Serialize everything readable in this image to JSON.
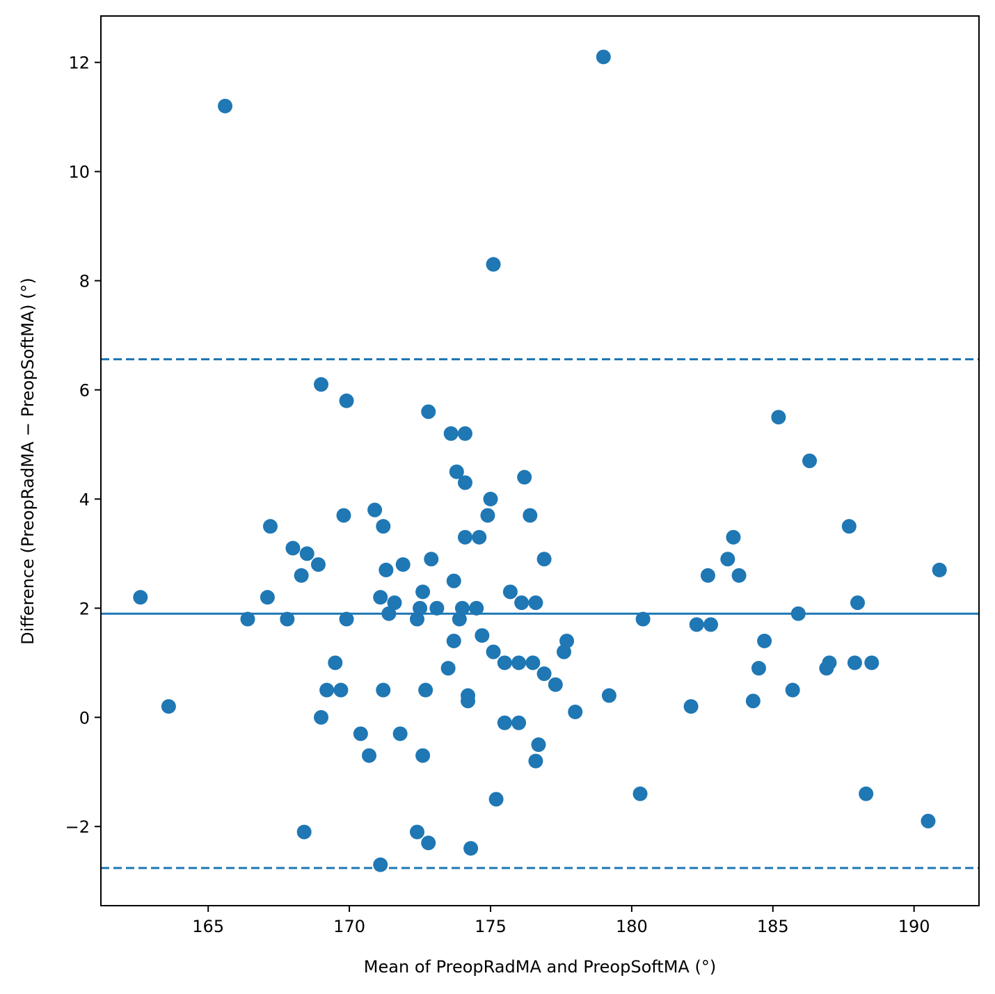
{
  "chart_data": {
    "type": "scatter",
    "xlabel": "Mean of PreopRadMA and PreopSoftMA (°)",
    "ylabel": "Difference (PreopRadMA − PreopSoftMA) (°)",
    "xlim": [
      161.2,
      192.3
    ],
    "ylim": [
      -3.45,
      12.85
    ],
    "x_ticks": [
      165,
      170,
      175,
      180,
      185,
      190
    ],
    "x_tick_labels": [
      "165",
      "170",
      "175",
      "180",
      "185",
      "190"
    ],
    "y_ticks": [
      -2,
      0,
      2,
      4,
      6,
      8,
      10,
      12
    ],
    "y_tick_labels": [
      "−2",
      "0",
      "2",
      "4",
      "6",
      "8",
      "10",
      "12"
    ],
    "grid": false,
    "point_color": "#1f77b4",
    "reference_lines": [
      {
        "kind": "mean",
        "y": 1.9,
        "style": "solid"
      },
      {
        "kind": "upper_limit",
        "y": 6.56,
        "style": "dashed"
      },
      {
        "kind": "lower_limit",
        "y": -2.76,
        "style": "dashed"
      }
    ],
    "points": [
      {
        "x": 162.6,
        "y": 2.2
      },
      {
        "x": 163.6,
        "y": 0.2
      },
      {
        "x": 165.6,
        "y": 11.2
      },
      {
        "x": 166.4,
        "y": 1.8
      },
      {
        "x": 167.1,
        "y": 2.2
      },
      {
        "x": 167.2,
        "y": 3.5
      },
      {
        "x": 167.8,
        "y": 1.8
      },
      {
        "x": 168.0,
        "y": 3.1
      },
      {
        "x": 168.3,
        "y": 2.6
      },
      {
        "x": 168.4,
        "y": -2.1
      },
      {
        "x": 168.5,
        "y": 3.0
      },
      {
        "x": 168.9,
        "y": 2.8
      },
      {
        "x": 169.0,
        "y": 0.0
      },
      {
        "x": 169.0,
        "y": 6.1
      },
      {
        "x": 169.2,
        "y": 0.5
      },
      {
        "x": 169.5,
        "y": 1.0
      },
      {
        "x": 169.7,
        "y": 0.5
      },
      {
        "x": 169.8,
        "y": 3.7
      },
      {
        "x": 169.9,
        "y": 5.8
      },
      {
        "x": 169.9,
        "y": 1.8
      },
      {
        "x": 170.4,
        "y": -0.3
      },
      {
        "x": 170.7,
        "y": -0.7
      },
      {
        "x": 170.9,
        "y": 3.8
      },
      {
        "x": 171.1,
        "y": 2.2
      },
      {
        "x": 171.1,
        "y": -2.7
      },
      {
        "x": 171.2,
        "y": 0.5
      },
      {
        "x": 171.2,
        "y": 3.5
      },
      {
        "x": 171.3,
        "y": 2.7
      },
      {
        "x": 171.4,
        "y": 1.9
      },
      {
        "x": 171.6,
        "y": 2.1
      },
      {
        "x": 171.8,
        "y": -0.3
      },
      {
        "x": 171.9,
        "y": 2.8
      },
      {
        "x": 172.4,
        "y": 1.8
      },
      {
        "x": 172.4,
        "y": -2.1
      },
      {
        "x": 172.5,
        "y": 2.0
      },
      {
        "x": 172.6,
        "y": 2.3
      },
      {
        "x": 172.6,
        "y": -0.7
      },
      {
        "x": 172.7,
        "y": 0.5
      },
      {
        "x": 172.8,
        "y": 5.6
      },
      {
        "x": 172.8,
        "y": -2.3
      },
      {
        "x": 172.9,
        "y": 2.9
      },
      {
        "x": 173.1,
        "y": 2.0
      },
      {
        "x": 173.5,
        "y": 0.9
      },
      {
        "x": 173.6,
        "y": 5.2
      },
      {
        "x": 173.7,
        "y": 1.4
      },
      {
        "x": 173.7,
        "y": 2.5
      },
      {
        "x": 173.8,
        "y": 4.5
      },
      {
        "x": 173.9,
        "y": 1.8
      },
      {
        "x": 174.0,
        "y": 2.0
      },
      {
        "x": 174.1,
        "y": 5.2
      },
      {
        "x": 174.1,
        "y": 4.3
      },
      {
        "x": 174.1,
        "y": 3.3
      },
      {
        "x": 174.2,
        "y": 0.3
      },
      {
        "x": 174.2,
        "y": 0.4
      },
      {
        "x": 174.3,
        "y": -2.4
      },
      {
        "x": 174.5,
        "y": 2.0
      },
      {
        "x": 174.6,
        "y": 3.3
      },
      {
        "x": 174.7,
        "y": 1.5
      },
      {
        "x": 174.9,
        "y": 3.7
      },
      {
        "x": 175.0,
        "y": 4.0
      },
      {
        "x": 175.1,
        "y": 1.2
      },
      {
        "x": 175.1,
        "y": 8.3
      },
      {
        "x": 175.2,
        "y": -1.5
      },
      {
        "x": 175.5,
        "y": -0.1
      },
      {
        "x": 175.5,
        "y": 1.0
      },
      {
        "x": 175.7,
        "y": 2.3
      },
      {
        "x": 176.0,
        "y": 1.0
      },
      {
        "x": 176.0,
        "y": -0.1
      },
      {
        "x": 176.1,
        "y": 2.1
      },
      {
        "x": 176.2,
        "y": 4.4
      },
      {
        "x": 176.4,
        "y": 3.7
      },
      {
        "x": 176.5,
        "y": 1.0
      },
      {
        "x": 176.6,
        "y": 2.1
      },
      {
        "x": 176.6,
        "y": -0.8
      },
      {
        "x": 176.7,
        "y": -0.5
      },
      {
        "x": 176.9,
        "y": 0.8
      },
      {
        "x": 176.9,
        "y": 2.9
      },
      {
        "x": 177.3,
        "y": 0.6
      },
      {
        "x": 177.6,
        "y": 1.2
      },
      {
        "x": 177.7,
        "y": 1.4
      },
      {
        "x": 178.0,
        "y": 0.1
      },
      {
        "x": 179.0,
        "y": 12.1
      },
      {
        "x": 179.2,
        "y": 0.4
      },
      {
        "x": 180.3,
        "y": -1.4
      },
      {
        "x": 180.4,
        "y": 1.8
      },
      {
        "x": 182.1,
        "y": 0.2
      },
      {
        "x": 182.3,
        "y": 1.7
      },
      {
        "x": 182.7,
        "y": 2.6
      },
      {
        "x": 182.8,
        "y": 1.7
      },
      {
        "x": 183.4,
        "y": 2.9
      },
      {
        "x": 183.6,
        "y": 3.3
      },
      {
        "x": 183.8,
        "y": 2.6
      },
      {
        "x": 184.3,
        "y": 0.3
      },
      {
        "x": 184.5,
        "y": 0.9
      },
      {
        "x": 184.7,
        "y": 1.4
      },
      {
        "x": 185.2,
        "y": 5.5
      },
      {
        "x": 185.7,
        "y": 0.5
      },
      {
        "x": 185.9,
        "y": 1.9
      },
      {
        "x": 186.3,
        "y": 4.7
      },
      {
        "x": 186.9,
        "y": 0.9
      },
      {
        "x": 187.0,
        "y": 1.0
      },
      {
        "x": 187.7,
        "y": 3.5
      },
      {
        "x": 187.9,
        "y": 1.0
      },
      {
        "x": 188.0,
        "y": 2.1
      },
      {
        "x": 188.3,
        "y": -1.4
      },
      {
        "x": 188.5,
        "y": 1.0
      },
      {
        "x": 190.5,
        "y": -1.9
      },
      {
        "x": 190.9,
        "y": 2.7
      }
    ]
  }
}
